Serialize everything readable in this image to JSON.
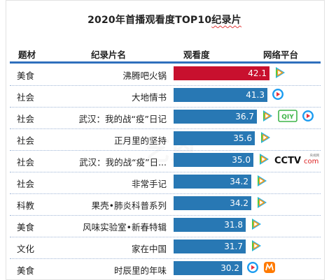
{
  "title": {
    "prefix": "2020年首播观看度TOP10",
    "underlined": "纪录片"
  },
  "headers": {
    "category": "题材",
    "name": "纪录片名",
    "score": "观看度",
    "platform": "网络平台"
  },
  "colors": {
    "top_bar": "#c8102e",
    "bar": "#2878b4",
    "header_rule": "#2f6fbd"
  },
  "chart_data": {
    "type": "bar",
    "orientation": "horizontal",
    "title": "2020年首播观看度TOP10纪录片",
    "xlim": [
      0,
      42.1
    ],
    "categories": [
      "沸腾吧火锅",
      "大地情书",
      "武汉：我的战“疫”日记",
      "正月里的坚持",
      "武汉：我的战“疫”日...",
      "非常手记",
      "果壳•肺炎科普系列",
      "风味实验室•新春特辑",
      "家在中国",
      "时辰里的年味"
    ],
    "values": [
      42.1,
      41.3,
      36.7,
      35.6,
      35.0,
      34.2,
      34.2,
      31.8,
      31.7,
      30.2
    ],
    "value_labels": [
      "42.1",
      "41.3",
      "36.7",
      "35.6",
      "35.0",
      "34.2",
      "34.2",
      "31.8",
      "31.7",
      "30.2"
    ]
  },
  "rows": [
    {
      "category": "美食",
      "platforms": [
        "tencent-video-icon"
      ]
    },
    {
      "category": "社会",
      "platforms": [
        "youku-icon"
      ]
    },
    {
      "category": "社会",
      "platforms": [
        "tencent-video-icon",
        "iqiyi-icon",
        "youku-icon"
      ]
    },
    {
      "category": "社会",
      "platforms": [
        "tencent-video-icon"
      ]
    },
    {
      "category": "社会",
      "platforms": [
        "tencent-video-icon",
        "cctv-icon"
      ]
    },
    {
      "category": "社会",
      "platforms": [
        "tencent-video-icon"
      ]
    },
    {
      "category": "科教",
      "platforms": [
        "tencent-video-icon"
      ]
    },
    {
      "category": "美食",
      "platforms": [
        "tencent-video-icon"
      ]
    },
    {
      "category": "文化",
      "platforms": [
        "tencent-video-icon"
      ]
    },
    {
      "category": "美食",
      "platforms": [
        "youku-icon",
        "mango-tv-icon"
      ]
    }
  ],
  "logos": {
    "iqiyi": "QIY",
    "cctv_main": "CCTV",
    "cctv_suffix": "com",
    "cctv_small": "央视网"
  }
}
